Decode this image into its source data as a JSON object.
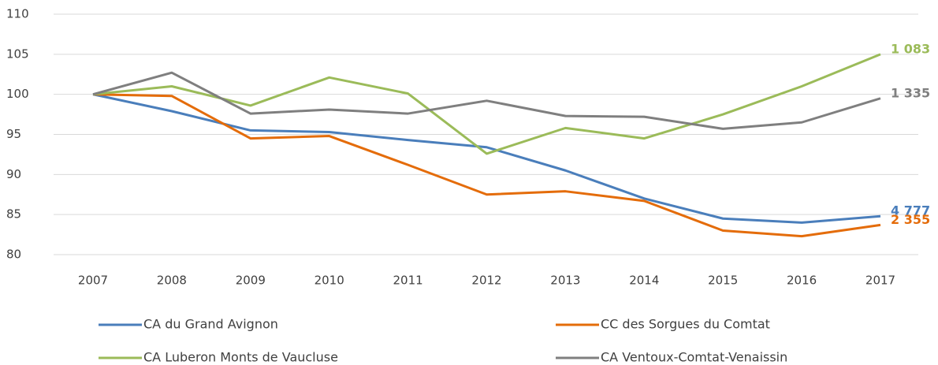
{
  "chart_data": {
    "type": "line",
    "x": [
      "2007",
      "2008",
      "2009",
      "2010",
      "2011",
      "2012",
      "2013",
      "2014",
      "2015",
      "2016",
      "2017"
    ],
    "ylim": [
      80,
      110
    ],
    "yticks": [
      80,
      85,
      90,
      95,
      100,
      105,
      110
    ],
    "grid": true,
    "legend": "bottom",
    "series": [
      {
        "name": "CA du Grand Avignon",
        "color": "#4a7ebb",
        "end_label": "4 777",
        "values": [
          100,
          97.9,
          95.5,
          95.3,
          94.3,
          93.4,
          90.5,
          87.0,
          84.5,
          84.0,
          84.8
        ]
      },
      {
        "name": "CC des Sorgues du Comtat",
        "color": "#e46c0a",
        "end_label": "2 355",
        "values": [
          100,
          99.8,
          94.5,
          94.8,
          91.2,
          87.5,
          87.9,
          86.7,
          83.0,
          82.3,
          83.7
        ]
      },
      {
        "name": "CA Luberon Monts de Vaucluse",
        "color": "#9bbb59",
        "end_label": "1 083",
        "values": [
          100,
          101.0,
          98.6,
          102.1,
          100.1,
          92.6,
          95.8,
          94.5,
          97.5,
          101.0,
          105.0
        ]
      },
      {
        "name": "CA Ventoux-Comtat-Venaissin",
        "color": "#7f7f7f",
        "end_label": "1 335",
        "values": [
          100,
          102.7,
          97.6,
          98.1,
          97.6,
          99.2,
          97.3,
          97.2,
          95.7,
          96.5,
          99.5
        ]
      }
    ]
  }
}
